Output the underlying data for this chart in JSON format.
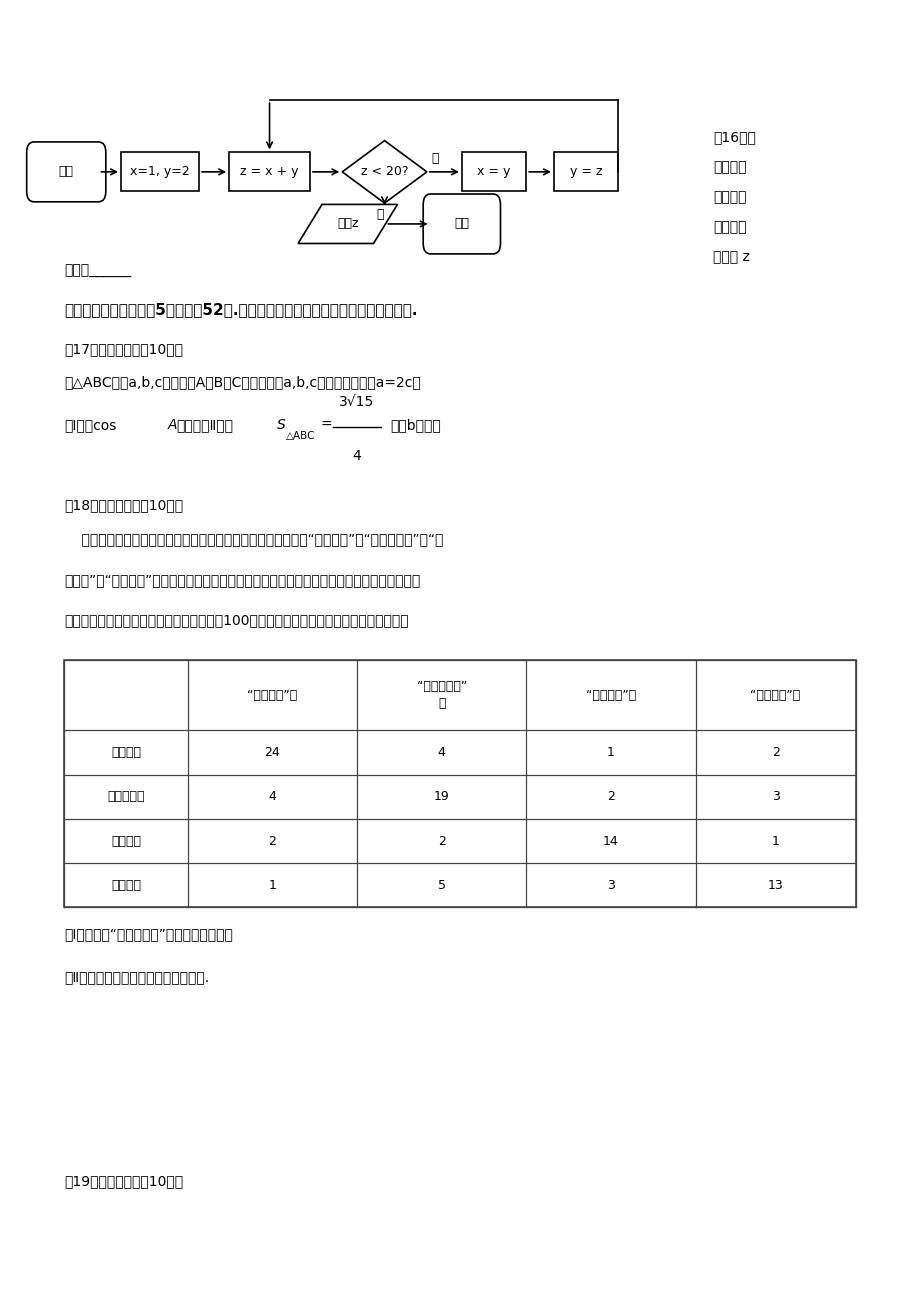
{
  "bg_color": "#ffffff",
  "text_color": "#000000",
  "fig_width": 9.2,
  "fig_height": 13.02,
  "section16_right_text": [
    "（16）执",
    "行如图所",
    "示的程序",
    "框图，则",
    "输出的 z"
  ],
  "section16_underline": "的値是______",
  "section3_header": "三、解答题：本大题共5小题，共52分.解答应写出文字说明、证明过程或演算步骤.",
  "q17_header": "（17）（本小题满分10分）",
  "q17_line1": "在△ABC内，a,b,c分别为角A，B，C所对的边，a,b,c成等差数列，且a=2c。",
  "q18_header": "（18）（本小题满分10分）",
  "table_col_headers": [
    "",
    "“厨余垃圾”筱",
    "“可回收垃圾”\n筱",
    "“有害垃圾”筱",
    "“其他垃圾”筱"
  ],
  "table_row_headers": [
    "厨余垃圾",
    "可回收垃圾",
    "有害垃圾",
    "其他垃圾"
  ],
  "table_data": [
    [
      24,
      4,
      1,
      2
    ],
    [
      4,
      19,
      2,
      3
    ],
    [
      2,
      2,
      14,
      1
    ],
    [
      1,
      5,
      3,
      13
    ]
  ],
  "q18_sub1": "（Ⅰ）试估计“可回收垃圾”投放正确的概率；",
  "q18_sub2": "（Ⅱ）试估计生活垃圾投放错误的概率.",
  "q19_header": "（19）（本小题满分10分）",
  "para_lines": [
    "    近年来，某市为了促进生活垃圾的分类处理，将生活垃圾分为“厨余垃圾”、“可回收垃圾”、“有",
    "害垃圾”和“其他垃圾”等四类，并分别设置了相应的垃圾筱，为调查居民生活垃圾的正确分类投",
    "放情况，现随机抽取了该市四类垃圾筱总计100咀生活垃圾，数据统计如下（单位：咀）："
  ]
}
